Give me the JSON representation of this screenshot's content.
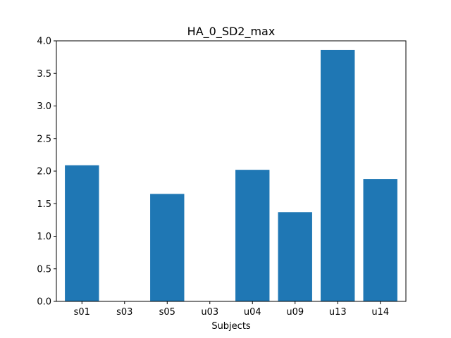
{
  "chart_data": {
    "type": "bar",
    "title": "HA_0_SD2_max",
    "xlabel": "Subjects",
    "ylabel": "",
    "categories": [
      "s01",
      "s03",
      "s05",
      "u03",
      "u04",
      "u09",
      "u13",
      "u14"
    ],
    "values": [
      2.09,
      0.0,
      1.65,
      0.0,
      2.02,
      1.37,
      3.86,
      1.88
    ],
    "ylim": [
      0,
      4.0
    ],
    "yticks": [
      "0.0",
      "0.5",
      "1.0",
      "1.5",
      "2.0",
      "2.5",
      "3.0",
      "3.5",
      "4.0"
    ],
    "grid": false,
    "legend": "none",
    "bar_color": "#1f77b4"
  }
}
